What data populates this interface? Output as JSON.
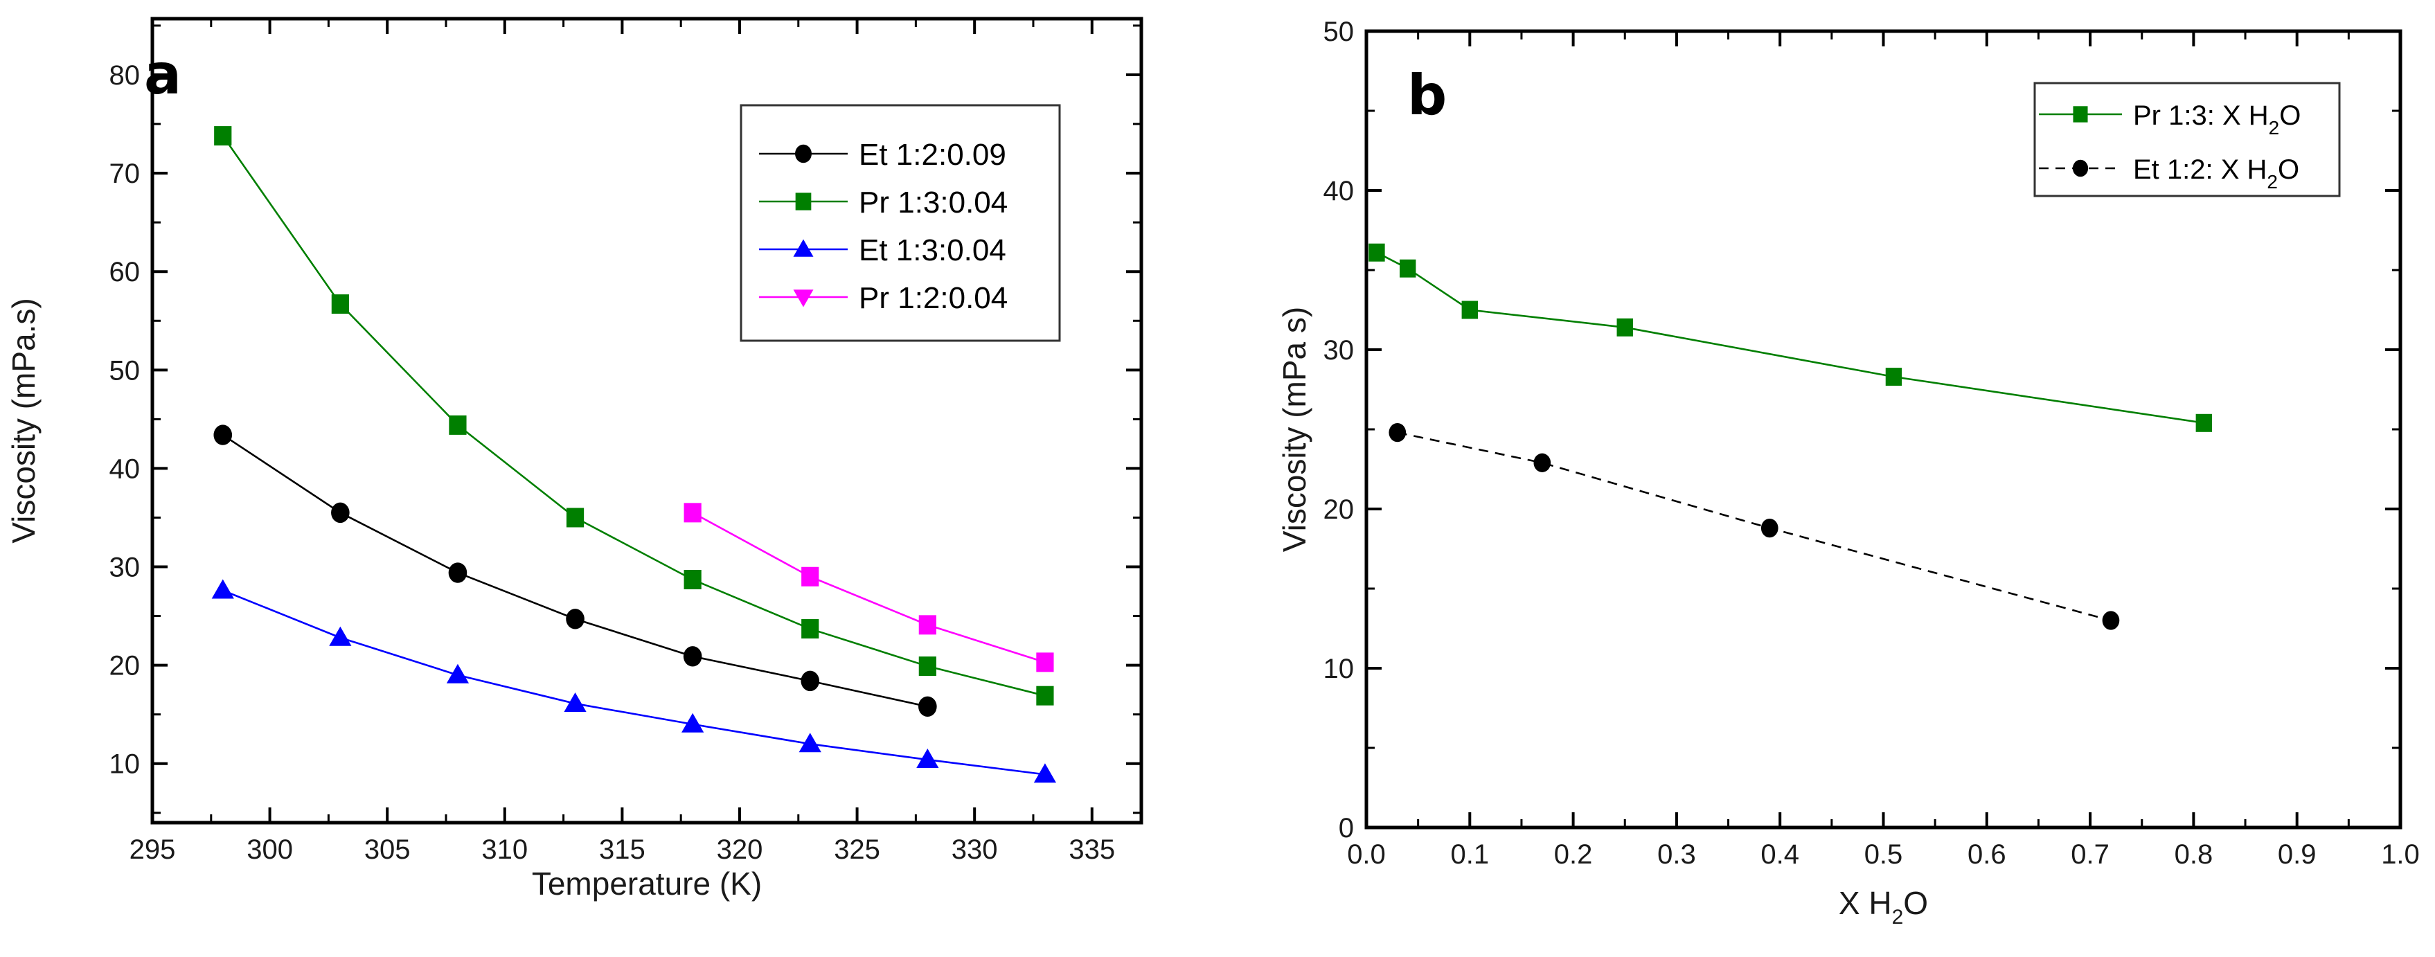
{
  "chart_data": [
    {
      "panel": "a",
      "type": "line",
      "title": "",
      "panel_label": "a",
      "xlabel": "Temperature (K)",
      "ylabel": "Viscosity (mPa.s)",
      "xlim": [
        295,
        337.1
      ],
      "ylim": [
        4,
        85.7
      ],
      "xticks": [
        295,
        300,
        305,
        310,
        315,
        320,
        325,
        330,
        335
      ],
      "xtick_labels": [
        "295",
        "300",
        "305",
        "310",
        "315",
        "320",
        "325",
        "330",
        "335"
      ],
      "x_minor_step": 2.5,
      "yticks": [
        10,
        20,
        30,
        40,
        50,
        60,
        70,
        80
      ],
      "ytick_labels": [
        "10",
        "20",
        "30",
        "40",
        "50",
        "60",
        "70",
        "80"
      ],
      "y_minor_step": 5,
      "grid": false,
      "legend_position": "top-right",
      "series": [
        {
          "name": "Et 1:2:0.09",
          "color": "#000000",
          "marker": "circle",
          "line_style": "solid",
          "x": [
            298,
            303,
            308,
            313,
            318,
            323,
            328
          ],
          "y": [
            43.4,
            35.5,
            29.4,
            24.7,
            20.9,
            18.4,
            15.8
          ]
        },
        {
          "name": "Pr 1:3:0.04",
          "color": "#007f00",
          "marker": "square",
          "line_style": "solid",
          "x": [
            298,
            303,
            308,
            313,
            318,
            323,
            328,
            333
          ],
          "y": [
            73.8,
            56.7,
            44.4,
            35.0,
            28.7,
            23.7,
            19.9,
            16.9
          ]
        },
        {
          "name": "Et 1:3:0.04",
          "color": "#0000ff",
          "marker": "triangle-up",
          "line_style": "solid",
          "x": [
            298,
            303,
            308,
            313,
            318,
            323,
            328,
            333
          ],
          "y": [
            27.6,
            22.8,
            19.0,
            16.1,
            14.0,
            12.0,
            10.4,
            8.9
          ]
        },
        {
          "name": "Pr 1:2:0.04",
          "color": "#ff00ff",
          "marker": "square",
          "legend_marker": "triangle-down",
          "line_style": "solid",
          "x": [
            318,
            323,
            328,
            333
          ],
          "y": [
            35.5,
            29.0,
            24.1,
            20.3
          ]
        }
      ]
    },
    {
      "panel": "b",
      "type": "line",
      "title": "",
      "panel_label": "b",
      "xlabel": "X H2O",
      "xlabel_parts": [
        "X H",
        "2",
        "O"
      ],
      "ylabel": "Viscosity (mPa s)",
      "xlim": [
        0,
        1.0
      ],
      "ylim": [
        0,
        50
      ],
      "xticks": [
        0.0,
        0.1,
        0.2,
        0.3,
        0.4,
        0.5,
        0.6,
        0.7,
        0.8,
        0.9,
        1.0
      ],
      "xtick_labels": [
        "0.0",
        "0.1",
        "0.2",
        "0.3",
        "0.4",
        "0.5",
        "0.6",
        "0.7",
        "0.8",
        "0.9",
        "1.0"
      ],
      "x_minor_step": 0.05,
      "yticks": [
        0,
        10,
        20,
        30,
        40,
        50
      ],
      "ytick_labels": [
        "0",
        "10",
        "20",
        "30",
        "40",
        "50"
      ],
      "y_minor_step": 5,
      "grid": false,
      "legend_position": "top-right",
      "series": [
        {
          "name": "Pr 1:3: X H2O",
          "label_parts": [
            "Pr 1:3: X H",
            "2",
            "O"
          ],
          "color": "#007f00",
          "marker": "square",
          "line_style": "solid",
          "x": [
            0.01,
            0.04,
            0.1,
            0.25,
            0.51,
            0.81
          ],
          "y": [
            36.1,
            35.1,
            32.5,
            31.4,
            28.3,
            25.4
          ]
        },
        {
          "name": "Et 1:2: X H2O",
          "label_parts": [
            "Et 1:2: X H",
            "2",
            "O"
          ],
          "color": "#000000",
          "marker": "circle",
          "line_style": "dashed",
          "x": [
            0.03,
            0.17,
            0.39,
            0.72
          ],
          "y": [
            24.8,
            22.9,
            18.8,
            13.0
          ]
        }
      ]
    }
  ]
}
